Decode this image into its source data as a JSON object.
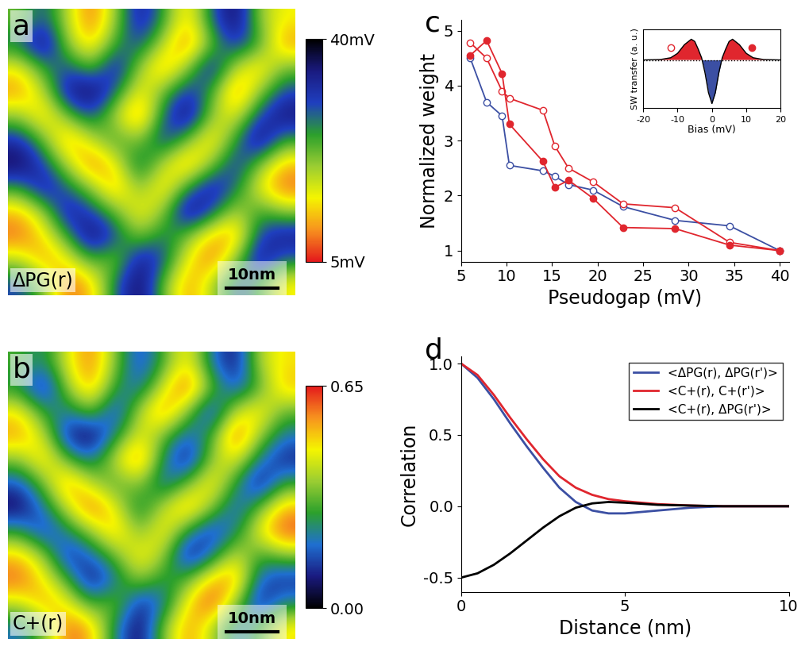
{
  "chart_data": [
    {
      "type": "heatmap",
      "panel": "a",
      "label": "ΔPG(r)",
      "size_nm": 56,
      "scale_bar_nm": 10,
      "scale_bar_label": "10nm",
      "clim": [
        5,
        40
      ],
      "cticks": [
        {
          "value": 5,
          "label": "5mV"
        },
        {
          "value": 40,
          "label": "40mV"
        }
      ],
      "cells": [
        [
          22,
          30,
          18,
          8,
          20,
          35,
          25,
          12,
          28,
          38,
          20,
          15
        ],
        [
          28,
          38,
          20,
          12,
          25,
          30,
          18,
          8,
          22,
          32,
          25,
          10
        ],
        [
          15,
          25,
          30,
          22,
          35,
          20,
          10,
          20,
          35,
          18,
          12,
          22
        ],
        [
          10,
          18,
          35,
          38,
          28,
          14,
          22,
          32,
          25,
          8,
          20,
          30
        ],
        [
          20,
          12,
          22,
          30,
          18,
          8,
          28,
          38,
          20,
          15,
          30,
          36
        ],
        [
          32,
          22,
          10,
          18,
          25,
          20,
          32,
          22,
          12,
          25,
          38,
          25
        ],
        [
          38,
          30,
          18,
          8,
          15,
          30,
          18,
          10,
          20,
          32,
          22,
          12
        ],
        [
          25,
          35,
          28,
          20,
          10,
          22,
          12,
          25,
          35,
          28,
          15,
          8
        ],
        [
          12,
          20,
          35,
          30,
          22,
          14,
          20,
          38,
          30,
          18,
          25,
          20
        ],
        [
          8,
          14,
          25,
          38,
          30,
          20,
          28,
          22,
          12,
          10,
          30,
          35
        ],
        [
          18,
          10,
          15,
          25,
          20,
          35,
          30,
          15,
          8,
          20,
          36,
          28
        ],
        [
          30,
          22,
          8,
          12,
          28,
          38,
          22,
          10,
          18,
          30,
          25,
          14
        ]
      ]
    },
    {
      "type": "heatmap",
      "panel": "b",
      "label": "C+(r)",
      "size_nm": 56,
      "scale_bar_nm": 10,
      "scale_bar_label": "10nm",
      "clim": [
        0,
        0.65
      ],
      "cticks": [
        {
          "value": 0,
          "label": "0.00"
        },
        {
          "value": 0.65,
          "label": "0.65"
        }
      ],
      "cells": [
        [
          0.3,
          0.22,
          0.45,
          0.58,
          0.35,
          0.12,
          0.3,
          0.5,
          0.2,
          0.06,
          0.4,
          0.48
        ],
        [
          0.25,
          0.05,
          0.38,
          0.55,
          0.26,
          0.18,
          0.44,
          0.62,
          0.33,
          0.14,
          0.3,
          0.52
        ],
        [
          0.48,
          0.27,
          0.2,
          0.35,
          0.1,
          0.4,
          0.58,
          0.36,
          0.08,
          0.42,
          0.5,
          0.32
        ],
        [
          0.55,
          0.42,
          0.08,
          0.03,
          0.24,
          0.46,
          0.34,
          0.16,
          0.28,
          0.63,
          0.38,
          0.2
        ],
        [
          0.36,
          0.52,
          0.31,
          0.19,
          0.43,
          0.6,
          0.23,
          0.05,
          0.37,
          0.47,
          0.21,
          0.09
        ],
        [
          0.15,
          0.34,
          0.57,
          0.4,
          0.29,
          0.38,
          0.16,
          0.33,
          0.51,
          0.27,
          0.04,
          0.28
        ],
        [
          0.05,
          0.2,
          0.43,
          0.61,
          0.45,
          0.21,
          0.41,
          0.56,
          0.37,
          0.15,
          0.32,
          0.53
        ],
        [
          0.27,
          0.11,
          0.23,
          0.38,
          0.54,
          0.33,
          0.5,
          0.26,
          0.1,
          0.22,
          0.47,
          0.62
        ],
        [
          0.51,
          0.37,
          0.09,
          0.18,
          0.34,
          0.49,
          0.39,
          0.04,
          0.19,
          0.44,
          0.28,
          0.36
        ],
        [
          0.6,
          0.47,
          0.29,
          0.05,
          0.2,
          0.39,
          0.24,
          0.31,
          0.52,
          0.57,
          0.17,
          0.1
        ],
        [
          0.42,
          0.55,
          0.46,
          0.27,
          0.36,
          0.09,
          0.19,
          0.48,
          0.64,
          0.38,
          0.07,
          0.23
        ],
        [
          0.19,
          0.33,
          0.6,
          0.53,
          0.22,
          0.04,
          0.35,
          0.56,
          0.41,
          0.18,
          0.29,
          0.49
        ]
      ]
    },
    {
      "type": "line",
      "panel": "c",
      "x_label": "Pseudogap (mV)",
      "y_label": "Normalized weight",
      "xlim": [
        5,
        41
      ],
      "ylim": [
        0.8,
        5.2
      ],
      "xticks": [
        5,
        10,
        15,
        20,
        25,
        30,
        35,
        40
      ],
      "yticks": [
        1,
        2,
        3,
        4,
        5
      ],
      "x": [
        6,
        7.8,
        9.5,
        10.3,
        14,
        15.3,
        16.8,
        19.5,
        22.8,
        28.5,
        34.5,
        40
      ],
      "series": [
        {
          "color": "#3b4fa3",
          "marker": "circle_open",
          "values": [
            4.5,
            3.7,
            3.45,
            2.55,
            2.45,
            2.35,
            2.2,
            2.1,
            1.8,
            1.55,
            1.45,
            1.0
          ]
        },
        {
          "color": "#e0262e",
          "marker": "circle_open",
          "values": [
            4.78,
            4.5,
            3.9,
            3.77,
            3.55,
            2.9,
            2.5,
            2.25,
            1.85,
            1.78,
            1.15,
            1.0
          ]
        },
        {
          "color": "#e0262e",
          "marker": "circle_filled",
          "values": [
            4.55,
            4.82,
            4.22,
            3.3,
            2.62,
            2.15,
            2.28,
            1.95,
            1.42,
            1.4,
            1.1,
            1.0
          ]
        }
      ],
      "inset": {
        "type": "area",
        "x_label": "Bias (mV)",
        "y_label": "SW transfer (a. u.)",
        "tick_labels": "x",
        "xlim": [
          -20,
          20
        ],
        "ylim": [
          -2.2,
          1.4
        ],
        "xticks": [
          -20,
          -10,
          0,
          10,
          20
        ],
        "x": [
          -20,
          -15,
          -12,
          -10,
          -8,
          -6,
          -5,
          -4,
          -3,
          -2,
          -1,
          0,
          1,
          2,
          3,
          4,
          5,
          6,
          8,
          10,
          12,
          15,
          20
        ],
        "values": [
          0,
          0.02,
          0.1,
          0.3,
          0.7,
          0.95,
          0.85,
          0.5,
          0.1,
          -0.6,
          -1.5,
          -2.0,
          -1.5,
          -0.6,
          0.1,
          0.5,
          0.85,
          0.95,
          0.7,
          0.3,
          0.1,
          0.02,
          0
        ],
        "points": [
          {
            "x": -12,
            "y": 0.55,
            "marker": "circle_open",
            "color": "#e0262e"
          },
          {
            "x": 11.5,
            "y": 0.55,
            "marker": "circle_filled",
            "color": "#e0262e"
          }
        ]
      }
    },
    {
      "type": "line",
      "panel": "d",
      "x_label": "Distance (nm)",
      "y_label": "Correlation",
      "legend": "upper right",
      "xlim": [
        0,
        10
      ],
      "ylim": [
        -0.6,
        1.05
      ],
      "xticks": [
        0,
        5,
        10
      ],
      "yticks": [
        {
          "value": -0.5,
          "label": "-0.5"
        },
        {
          "value": 0,
          "label": "0.0"
        },
        {
          "value": 0.5,
          "label": "0.5"
        },
        {
          "value": 1.0,
          "label": "1.0"
        }
      ],
      "x": [
        0,
        0.5,
        1,
        1.5,
        2,
        2.5,
        3,
        3.5,
        4,
        4.5,
        5,
        6,
        7,
        8,
        9,
        10
      ],
      "series": [
        {
          "name": "<ΔPG(r), ΔPG(r')>",
          "color": "#3b4fa3",
          "values": [
            1.0,
            0.9,
            0.75,
            0.58,
            0.42,
            0.27,
            0.13,
            0.03,
            -0.03,
            -0.05,
            -0.05,
            -0.03,
            -0.01,
            0,
            0,
            0
          ]
        },
        {
          "name": "<C+(r), C+(r')>",
          "color": "#e0262e",
          "values": [
            1.0,
            0.92,
            0.78,
            0.62,
            0.47,
            0.33,
            0.21,
            0.13,
            0.08,
            0.05,
            0.035,
            0.015,
            0.005,
            0,
            0,
            0
          ]
        },
        {
          "name": "<C+(r), ΔPG(r')>",
          "color": "#000000",
          "values": [
            -0.5,
            -0.47,
            -0.41,
            -0.33,
            -0.24,
            -0.15,
            -0.07,
            -0.01,
            0.02,
            0.03,
            0.025,
            0.01,
            0.005,
            0,
            0,
            0
          ]
        }
      ]
    }
  ]
}
